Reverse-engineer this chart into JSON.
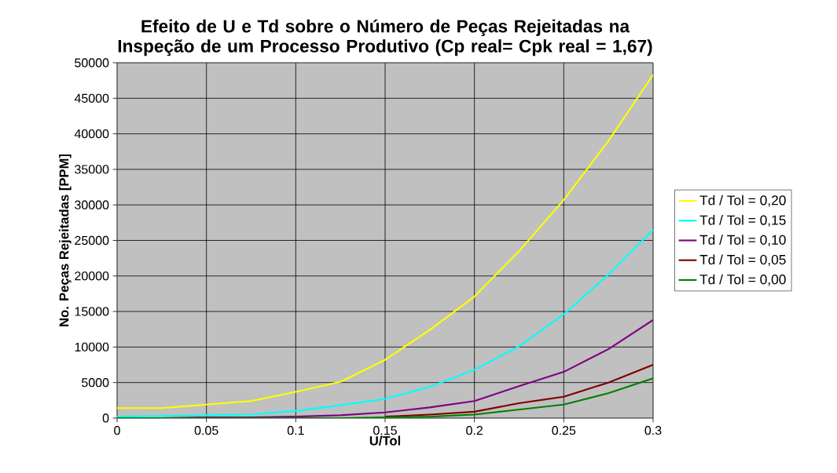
{
  "chart_data": {
    "type": "line",
    "title": "Efeito de U e Td sobre o Número de Peças Rejeitadas na Inspeção de um Processo Produtivo (Cp real= Cpk real = 1,67)",
    "xlabel": "U/Tol",
    "ylabel": "No. Peças Rejeitadas [PPM]",
    "x": [
      0,
      0.025,
      0.05,
      0.075,
      0.1,
      0.125,
      0.15,
      0.175,
      0.2,
      0.225,
      0.25,
      0.275,
      0.3
    ],
    "series": [
      {
        "name": "Td / Tol = 0,20",
        "color": "#ffff00",
        "values": [
          1400,
          1400,
          1900,
          2400,
          3700,
          5100,
          8200,
          12400,
          17100,
          23500,
          30700,
          39000,
          48300
        ]
      },
      {
        "name": "Td / Tol = 0,15",
        "color": "#00ffff",
        "values": [
          200,
          300,
          400,
          500,
          1000,
          1800,
          2700,
          4400,
          6800,
          10100,
          14600,
          20200,
          26500
        ]
      },
      {
        "name": "Td / Tol = 0,10",
        "color": "#800080",
        "values": [
          0,
          0,
          100,
          100,
          200,
          400,
          800,
          1500,
          2400,
          4500,
          6500,
          9700,
          13800
        ]
      },
      {
        "name": "Td / Tol = 0,05",
        "color": "#800000",
        "values": [
          null,
          null,
          null,
          null,
          null,
          null,
          200,
          500,
          900,
          2100,
          3000,
          5000,
          7500
        ]
      },
      {
        "name": "Td / Tol = 0,00",
        "color": "#008000",
        "values": [
          0,
          0,
          0,
          0,
          0,
          0,
          100,
          200,
          500,
          1200,
          1900,
          3500,
          5600
        ]
      }
    ],
    "xlim": [
      0,
      0.3
    ],
    "xticks": [
      0,
      0.05,
      0.1,
      0.15,
      0.2,
      0.25,
      0.3
    ],
    "ylim": [
      0,
      50000
    ],
    "yticks": [
      0,
      5000,
      10000,
      15000,
      20000,
      25000,
      30000,
      35000,
      40000,
      45000,
      50000
    ],
    "grid": true,
    "legend": "right",
    "marker": "none",
    "line_style": "solid"
  }
}
